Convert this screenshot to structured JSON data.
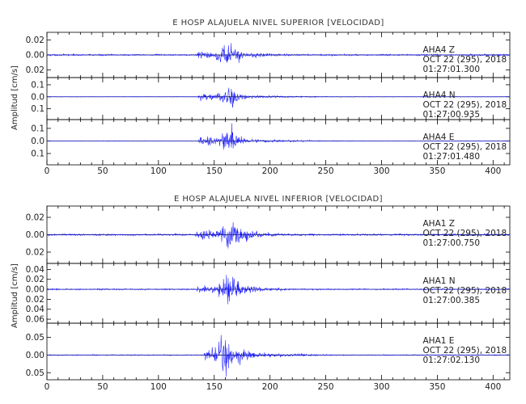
{
  "chart_data": [
    {
      "type": "line",
      "title": "E HOSP ALAJUELA NIVEL SUPERIOR [VELOCIDAD]",
      "ylabel": "Amplitud [cm/s]",
      "xlim": [
        0,
        415
      ],
      "xticks": [
        0,
        50,
        100,
        150,
        200,
        250,
        300,
        350,
        400
      ],
      "line_color": "#1a1aff",
      "traces": [
        {
          "station": "AHA4",
          "component": "Z",
          "date": "OCT 22 (295), 2018",
          "time": "01:27:01.300",
          "ylim": [
            -0.03,
            0.03
          ],
          "yticks": [
            -0.02,
            0.0,
            0.02
          ],
          "ytick_labels": [
            "0.02",
            "0.00",
            "0.02"
          ],
          "onset": 133,
          "peak_time": 162,
          "peak_amplitude": 0.025,
          "noise_amplitude": 0.0015,
          "coda_decay": 0.02
        },
        {
          "station": "AHA4",
          "component": "N",
          "date": "OCT 22 (295), 2018",
          "time": "01:27:00.935",
          "ylim": [
            -0.19,
            0.16
          ],
          "yticks": [
            -0.1,
            0.0,
            0.1
          ],
          "ytick_labels": [
            "0.1",
            "0.0",
            "0.1"
          ],
          "onset": 135,
          "peak_time": 165,
          "peak_amplitude": 0.16,
          "noise_amplitude": 0.003,
          "coda_decay": 0.05
        },
        {
          "station": "AHA4",
          "component": "E",
          "date": "OCT 22 (295), 2018",
          "time": "01:27:01.480",
          "ylim": [
            -0.19,
            0.17
          ],
          "yticks": [
            -0.1,
            0.0,
            0.1
          ],
          "ytick_labels": [
            "0.1",
            "0.0",
            "0.1"
          ],
          "onset": 135,
          "peak_time": 165,
          "peak_amplitude": 0.17,
          "noise_amplitude": 0.003,
          "coda_decay": 0.05
        }
      ]
    },
    {
      "type": "line",
      "title": "E HOSP ALAJUELA NIVEL INFERIOR [VELOCIDAD]",
      "ylabel": "Amplitud [cm/s]",
      "xlim": [
        0,
        415
      ],
      "xticks": [
        0,
        50,
        100,
        150,
        200,
        250,
        300,
        350,
        400
      ],
      "line_color": "#1a1aff",
      "traces": [
        {
          "station": "AHA1",
          "component": "Z",
          "date": "OCT 22 (295), 2018",
          "time": "01:27:00.750",
          "ylim": [
            -0.033,
            0.033
          ],
          "yticks": [
            -0.02,
            0.0,
            0.02
          ],
          "ytick_labels": [
            "0.02",
            "0.00",
            "0.02"
          ],
          "onset": 132,
          "peak_time": 165,
          "peak_amplitude": 0.028,
          "noise_amplitude": 0.0015,
          "coda_decay": 0.02
        },
        {
          "station": "AHA1",
          "component": "N",
          "date": "OCT 22 (295), 2018",
          "time": "01:27:00.385",
          "ylim": [
            -0.068,
            0.052
          ],
          "yticks": [
            -0.06,
            -0.04,
            -0.02,
            0.0,
            0.02,
            0.04
          ],
          "ytick_labels": [
            "0.06",
            "0.04",
            "0.02",
            "0.00",
            "0.02",
            "0.04"
          ],
          "onset": 133,
          "peak_time": 162,
          "peak_amplitude": 0.05,
          "noise_amplitude": 0.002,
          "coda_decay": 0.025
        },
        {
          "station": "AHA1",
          "component": "E",
          "date": "OCT 22 (295), 2018",
          "time": "01:27:02.130",
          "ylim": [
            -0.07,
            0.09
          ],
          "yticks": [
            -0.05,
            0.0,
            0.05
          ],
          "ytick_labels": [
            "0.05",
            "0.00",
            "0.05"
          ],
          "onset": 140,
          "peak_time": 160,
          "peak_amplitude": 0.085,
          "noise_amplitude": 0.002,
          "coda_decay": 0.03
        }
      ]
    }
  ]
}
